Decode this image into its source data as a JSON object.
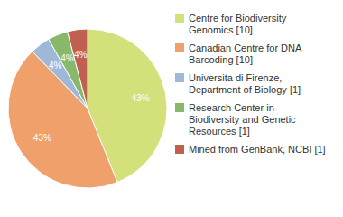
{
  "chart_data": {
    "type": "pie",
    "categories": [
      "Centre for Biodiversity\nGenomics [10]",
      "Canadian Centre for DNA\nBarcoding [10]",
      "Universita di Firenze,\nDepartment of Biology [1]",
      "Research Center in\nBiodiversity and Genetic\nResources [1]",
      "Mined from GenBank, NCBI [1]"
    ],
    "values": [
      43,
      43,
      4,
      4,
      4
    ],
    "value_labels": [
      "43%",
      "43%",
      "4%",
      "4%",
      "4%"
    ],
    "colors": [
      "#d4e07a",
      "#f0a06a",
      "#a0b8d8",
      "#8ab86a",
      "#c06050"
    ],
    "data_labels": true,
    "legend": "right"
  }
}
